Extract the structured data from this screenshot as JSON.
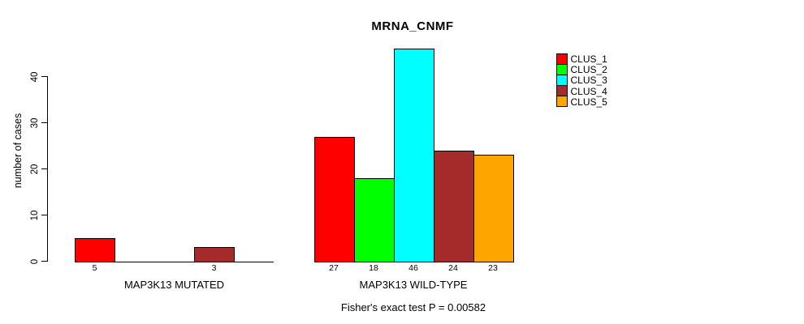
{
  "chart_data": {
    "type": "bar",
    "title": "MRNA_CNMF",
    "ylabel": "number of cases",
    "xlabel": "",
    "ylim": [
      0,
      46
    ],
    "yticks": [
      0,
      10,
      20,
      30,
      40
    ],
    "grid": false,
    "legend_position": "right-outside",
    "bar_value_labels_shown": true,
    "zero_bars_hidden": true,
    "categories": [
      "CLUS_1",
      "CLUS_2",
      "CLUS_3",
      "CLUS_4",
      "CLUS_5"
    ],
    "colors": [
      "#ff0000",
      "#00ff00",
      "#00ffff",
      "#a52a2a",
      "#ffa500"
    ],
    "series": [
      {
        "name": "CLUS_1",
        "color": "#ff0000",
        "values": [
          5,
          27
        ]
      },
      {
        "name": "CLUS_2",
        "color": "#00ff00",
        "values": [
          0,
          18
        ]
      },
      {
        "name": "CLUS_3",
        "color": "#00ffff",
        "values": [
          0,
          46
        ]
      },
      {
        "name": "CLUS_4",
        "color": "#a52a2a",
        "values": [
          3,
          24
        ]
      },
      {
        "name": "CLUS_5",
        "color": "#ffa500",
        "values": [
          0,
          23
        ]
      }
    ],
    "groups": [
      {
        "label": "MAP3K13 MUTATED",
        "values": [
          5,
          0,
          0,
          3,
          0
        ]
      },
      {
        "label": "MAP3K13 WILD-TYPE",
        "values": [
          27,
          18,
          46,
          24,
          23
        ]
      }
    ],
    "annotation": "Fisher's exact test P = 0.00582",
    "text_color": "#000000",
    "background_color": "#ffffff"
  }
}
